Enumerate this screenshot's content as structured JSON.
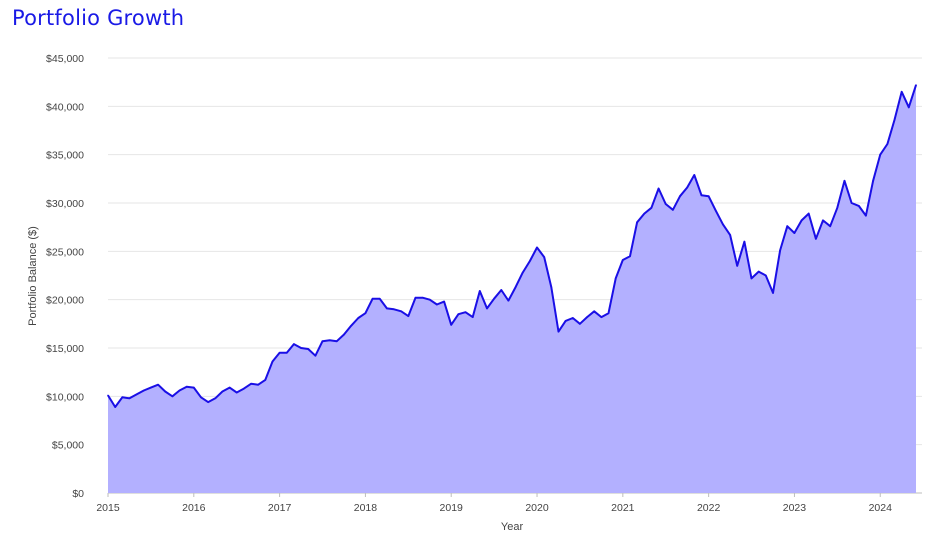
{
  "chart_data": {
    "type": "area",
    "title": "Portfolio Growth",
    "xlabel": "Year",
    "ylabel": "Portfolio Balance ($)",
    "ylim": [
      0,
      45000
    ],
    "xlim": [
      "2015-01",
      "2024-06"
    ],
    "y_ticks": [
      "$0",
      "$5,000",
      "$10,000",
      "$15,000",
      "$20,000",
      "$25,000",
      "$30,000",
      "$35,000",
      "$40,000",
      "$45,000"
    ],
    "x_ticks": [
      "2015",
      "2016",
      "2017",
      "2018",
      "2019",
      "2020",
      "2021",
      "2022",
      "2023",
      "2024"
    ],
    "grid": "horizontal",
    "colors": {
      "line": "#1a0fe6",
      "fill": "#b3b0ff",
      "title": "#1a1ae6"
    },
    "series": [
      {
        "x": [
          "2015-01",
          "2015-02",
          "2015-03",
          "2015-04",
          "2015-05",
          "2015-06",
          "2015-07",
          "2015-08",
          "2015-09",
          "2015-10",
          "2015-11",
          "2015-12",
          "2016-01",
          "2016-02",
          "2016-03",
          "2016-04",
          "2016-05",
          "2016-06",
          "2016-07",
          "2016-08",
          "2016-09",
          "2016-10",
          "2016-11",
          "2016-12",
          "2017-01",
          "2017-02",
          "2017-03",
          "2017-04",
          "2017-05",
          "2017-06",
          "2017-07",
          "2017-08",
          "2017-09",
          "2017-10",
          "2017-11",
          "2017-12",
          "2018-01",
          "2018-02",
          "2018-03",
          "2018-04",
          "2018-05",
          "2018-06",
          "2018-07",
          "2018-08",
          "2018-09",
          "2018-10",
          "2018-11",
          "2018-12",
          "2019-01",
          "2019-02",
          "2019-03",
          "2019-04",
          "2019-05",
          "2019-06",
          "2019-07",
          "2019-08",
          "2019-09",
          "2019-10",
          "2019-11",
          "2019-12",
          "2020-01",
          "2020-02",
          "2020-03",
          "2020-04",
          "2020-05",
          "2020-06",
          "2020-07",
          "2020-08",
          "2020-09",
          "2020-10",
          "2020-11",
          "2020-12",
          "2021-01",
          "2021-02",
          "2021-03",
          "2021-04",
          "2021-05",
          "2021-06",
          "2021-07",
          "2021-08",
          "2021-09",
          "2021-10",
          "2021-11",
          "2021-12",
          "2022-01",
          "2022-02",
          "2022-03",
          "2022-04",
          "2022-05",
          "2022-06",
          "2022-07",
          "2022-08",
          "2022-09",
          "2022-10",
          "2022-11",
          "2022-12",
          "2023-01",
          "2023-02",
          "2023-03",
          "2023-04",
          "2023-05",
          "2023-06",
          "2023-07",
          "2023-08",
          "2023-09",
          "2023-10",
          "2023-11",
          "2023-12",
          "2024-01",
          "2024-02",
          "2024-03",
          "2024-04",
          "2024-05",
          "2024-06"
        ],
        "values": [
          10100,
          8900,
          9900,
          9800,
          10200,
          10600,
          10900,
          11200,
          10500,
          10000,
          10600,
          11000,
          10900,
          9900,
          9400,
          9800,
          10500,
          10900,
          10400,
          10800,
          11300,
          11200,
          11700,
          13600,
          14500,
          14500,
          15400,
          15000,
          14900,
          14200,
          15700,
          15800,
          15700,
          16400,
          17300,
          18100,
          18600,
          20100,
          20100,
          19100,
          19000,
          18800,
          18300,
          20200,
          20200,
          20000,
          19500,
          19800,
          17400,
          18500,
          18700,
          18200,
          20900,
          19100,
          20100,
          21000,
          19900,
          21300,
          22800,
          24000,
          25400,
          24400,
          21300,
          16700,
          17800,
          18100,
          17500,
          18200,
          18800,
          18200,
          18600,
          22200,
          24100,
          24500,
          28000,
          28900,
          29500,
          31500,
          29900,
          29300,
          30700,
          31600,
          32900,
          30800,
          30700,
          29200,
          27800,
          26700,
          23500,
          26000,
          22200,
          22900,
          22500,
          20700,
          25100,
          27600,
          26900,
          28200,
          28900,
          26300,
          28200,
          27600,
          29500,
          32300,
          30000,
          29700,
          28700,
          32300,
          35000,
          36100,
          38600,
          41500,
          39900,
          42200
        ]
      }
    ]
  }
}
